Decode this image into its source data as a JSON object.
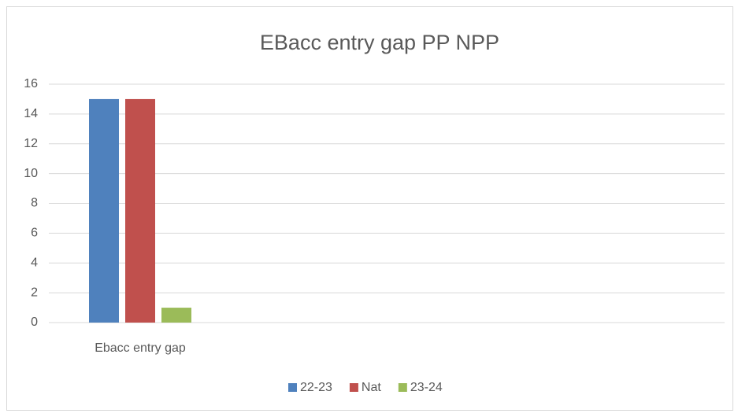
{
  "chart_data": {
    "type": "bar",
    "title": "EBacc entry gap PP NPP",
    "categories": [
      "Ebacc entry gap"
    ],
    "series": [
      {
        "name": "22-23",
        "color": "#4f81bd",
        "values": [
          15
        ]
      },
      {
        "name": "Nat",
        "color": "#c0504d",
        "values": [
          15
        ]
      },
      {
        "name": "23-24",
        "color": "#9bbb59",
        "values": [
          1
        ]
      }
    ],
    "ylim": [
      0,
      16
    ],
    "yticks": [
      0,
      2,
      4,
      6,
      8,
      10,
      12,
      14,
      16
    ],
    "grid": true,
    "legend": "bottom"
  }
}
